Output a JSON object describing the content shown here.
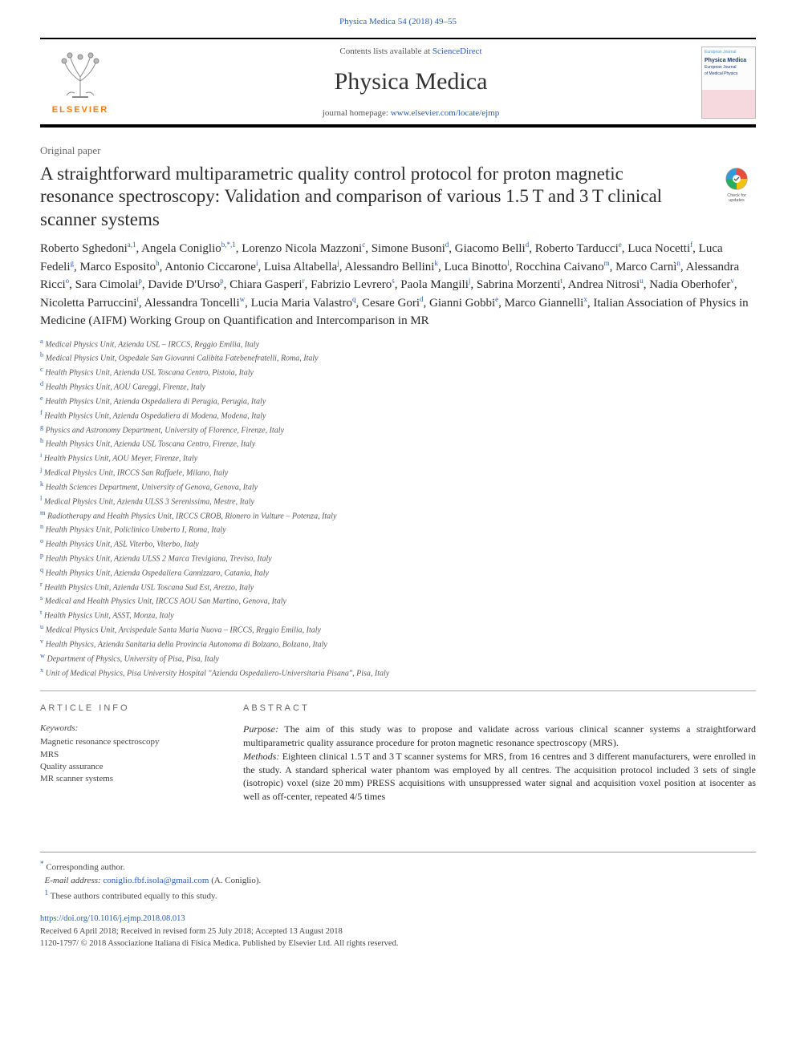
{
  "citation": "Physica Medica 54 (2018) 49–55",
  "header": {
    "contents_prefix": "Contents lists available at ",
    "contents_link": "ScienceDirect",
    "journal": "Physica Medica",
    "homepage_prefix": "journal homepage: ",
    "homepage_link": "www.elsevier.com/locate/ejmp",
    "elsevier_label": "ELSEVIER",
    "cover": {
      "line1": "European Journal",
      "title": "Physica Medica",
      "sub1": "European Journal",
      "sub2": "of Medical Physics"
    }
  },
  "paper_type": "Original paper",
  "title": "A straightforward multiparametric quality control protocol for proton magnetic resonance spectroscopy: Validation and comparison of various 1.5 T and 3 T clinical scanner systems",
  "check_updates_label": "Check for updates",
  "authors_html": "Roberto Sghedoni<sup>a,1</sup>, Angela Coniglio<sup>b,*,1</sup>, Lorenzo Nicola Mazzoni<sup>c</sup>, Simone Busoni<sup>d</sup>, Giacomo Belli<sup>d</sup>, Roberto Tarducci<sup>e</sup>, Luca Nocetti<sup>f</sup>, Luca Fedeli<sup>g</sup>, Marco Esposito<sup>h</sup>, Antonio Ciccarone<sup>i</sup>, Luisa Altabella<sup>j</sup>, Alessandro Bellini<sup>k</sup>, Luca Binotto<sup>l</sup>, Rocchina Caivano<sup>m</sup>, Marco Carnì<sup>n</sup>, Alessandra Ricci<sup>o</sup>, Sara Cimolai<sup>p</sup>, Davide D'Urso<sup>p</sup>, Chiara Gasperi<sup>r</sup>, Fabrizio Levrero<sup>s</sup>, Paola Mangili<sup>j</sup>, Sabrina Morzenti<sup>t</sup>, Andrea Nitrosi<sup>u</sup>, Nadia Oberhofer<sup>v</sup>, Nicoletta Parruccini<sup>t</sup>, Alessandra Toncelli<sup>w</sup>, Lucia Maria Valastro<sup>q</sup>, Cesare Gori<sup>d</sup>, Gianni Gobbi<sup>e</sup>, Marco Giannelli<sup>x</sup>, Italian Association of Physics in Medicine (AIFM) Working Group on Quantification and Intercomparison in MR",
  "affiliations": [
    {
      "sup": "a",
      "text": "Medical Physics Unit, Azienda USL – IRCCS, Reggio Emilia, Italy"
    },
    {
      "sup": "b",
      "text": "Medical Physics Unit, Ospedale San Giovanni Calibita Fatebenefratelli, Roma, Italy"
    },
    {
      "sup": "c",
      "text": "Health Physics Unit, Azienda USL Toscana Centro, Pistoia, Italy"
    },
    {
      "sup": "d",
      "text": "Health Physics Unit, AOU Careggi, Firenze, Italy"
    },
    {
      "sup": "e",
      "text": "Health Physics Unit, Azienda Ospedaliera di Perugia, Perugia, Italy"
    },
    {
      "sup": "f",
      "text": "Health Physics Unit, Azienda Ospedaliera di Modena, Modena, Italy"
    },
    {
      "sup": "g",
      "text": "Physics and Astronomy Department, University of Florence, Firenze, Italy"
    },
    {
      "sup": "h",
      "text": "Health Physics Unit, Azienda USL Toscana Centro, Firenze, Italy"
    },
    {
      "sup": "i",
      "text": "Health Physics Unit, AOU Meyer, Firenze, Italy"
    },
    {
      "sup": "j",
      "text": "Medical Physics Unit, IRCCS San Raffaele, Milano, Italy"
    },
    {
      "sup": "k",
      "text": "Health Sciences Department, University of Genova, Genova, Italy"
    },
    {
      "sup": "l",
      "text": "Medical Physics Unit, Azienda ULSS 3 Serenissima, Mestre, Italy"
    },
    {
      "sup": "m",
      "text": "Radiotherapy and Health Physics Unit, IRCCS CROB, Rionero in Vulture – Potenza, Italy"
    },
    {
      "sup": "n",
      "text": "Health Physics Unit, Policlinico Umberto I, Roma, Italy"
    },
    {
      "sup": "o",
      "text": "Health Physics Unit, ASL Viterbo, Viterbo, Italy"
    },
    {
      "sup": "p",
      "text": "Health Physics Unit, Azienda ULSS 2 Marca Trevigiana, Treviso, Italy"
    },
    {
      "sup": "q",
      "text": "Health Physics Unit, Azienda Ospedaliera Cannizzaro, Catania, Italy"
    },
    {
      "sup": "r",
      "text": "Health Physics Unit, Azienda USL Toscana Sud Est, Arezzo, Italy"
    },
    {
      "sup": "s",
      "text": "Medical and Health Physics Unit, IRCCS AOU San Martino, Genova, Italy"
    },
    {
      "sup": "t",
      "text": "Health Physics Unit, ASST, Monza, Italy"
    },
    {
      "sup": "u",
      "text": "Medical Physics Unit, Arcispedale Santa Maria Nuova – IRCCS, Reggio Emilia, Italy"
    },
    {
      "sup": "v",
      "text": "Health Physics, Azienda Sanitaria della Provincia Autonoma di Bolzano, Bolzano, Italy"
    },
    {
      "sup": "w",
      "text": "Department of Physics, University of Pisa, Pisa, Italy"
    },
    {
      "sup": "x",
      "text": "Unit of Medical Physics, Pisa University Hospital \"Azienda Ospedaliero-Universitaria Pisana\", Pisa, Italy"
    }
  ],
  "article_info_heading": "ARTICLE INFO",
  "keywords_label": "Keywords:",
  "keywords": [
    "Magnetic resonance spectroscopy",
    "MRS",
    "Quality assurance",
    "MR scanner systems"
  ],
  "abstract_heading": "ABSTRACT",
  "abstract": {
    "purpose_label": "Purpose:",
    "purpose": " The aim of this study was to propose and validate across various clinical scanner systems a straightforward multiparametric quality assurance procedure for proton magnetic resonance spectroscopy (MRS).",
    "methods_label": "Methods:",
    "methods": " Eighteen clinical 1.5 T and 3 T scanner systems for MRS, from 16 centres and 3 different manufacturers, were enrolled in the study. A standard spherical water phantom was employed by all centres. The acquisition protocol included 3 sets of single (isotropic) voxel (size 20 mm) PRESS acquisitions with unsuppressed water signal and acquisition voxel position at isocenter as well as off-center, repeated 4/5 times"
  },
  "footnotes": {
    "corresponding": "Corresponding author.",
    "email_label": "E-mail address: ",
    "email": "coniglio.fbf.isola@gmail.com",
    "email_person": " (A. Coniglio).",
    "equal": "These authors contributed equally to this study."
  },
  "doi": "https://doi.org/10.1016/j.ejmp.2018.08.013",
  "received": "Received 6 April 2018; Received in revised form 25 July 2018; Accepted 13 August 2018",
  "copyright": "1120-1797/ © 2018 Associazione Italiana di Fisica Medica. Published by Elsevier Ltd. All rights reserved.",
  "colors": {
    "link": "#2a5db0",
    "elsevier_orange": "#ff7a00",
    "text": "#2b2b2b",
    "muted": "#666"
  }
}
